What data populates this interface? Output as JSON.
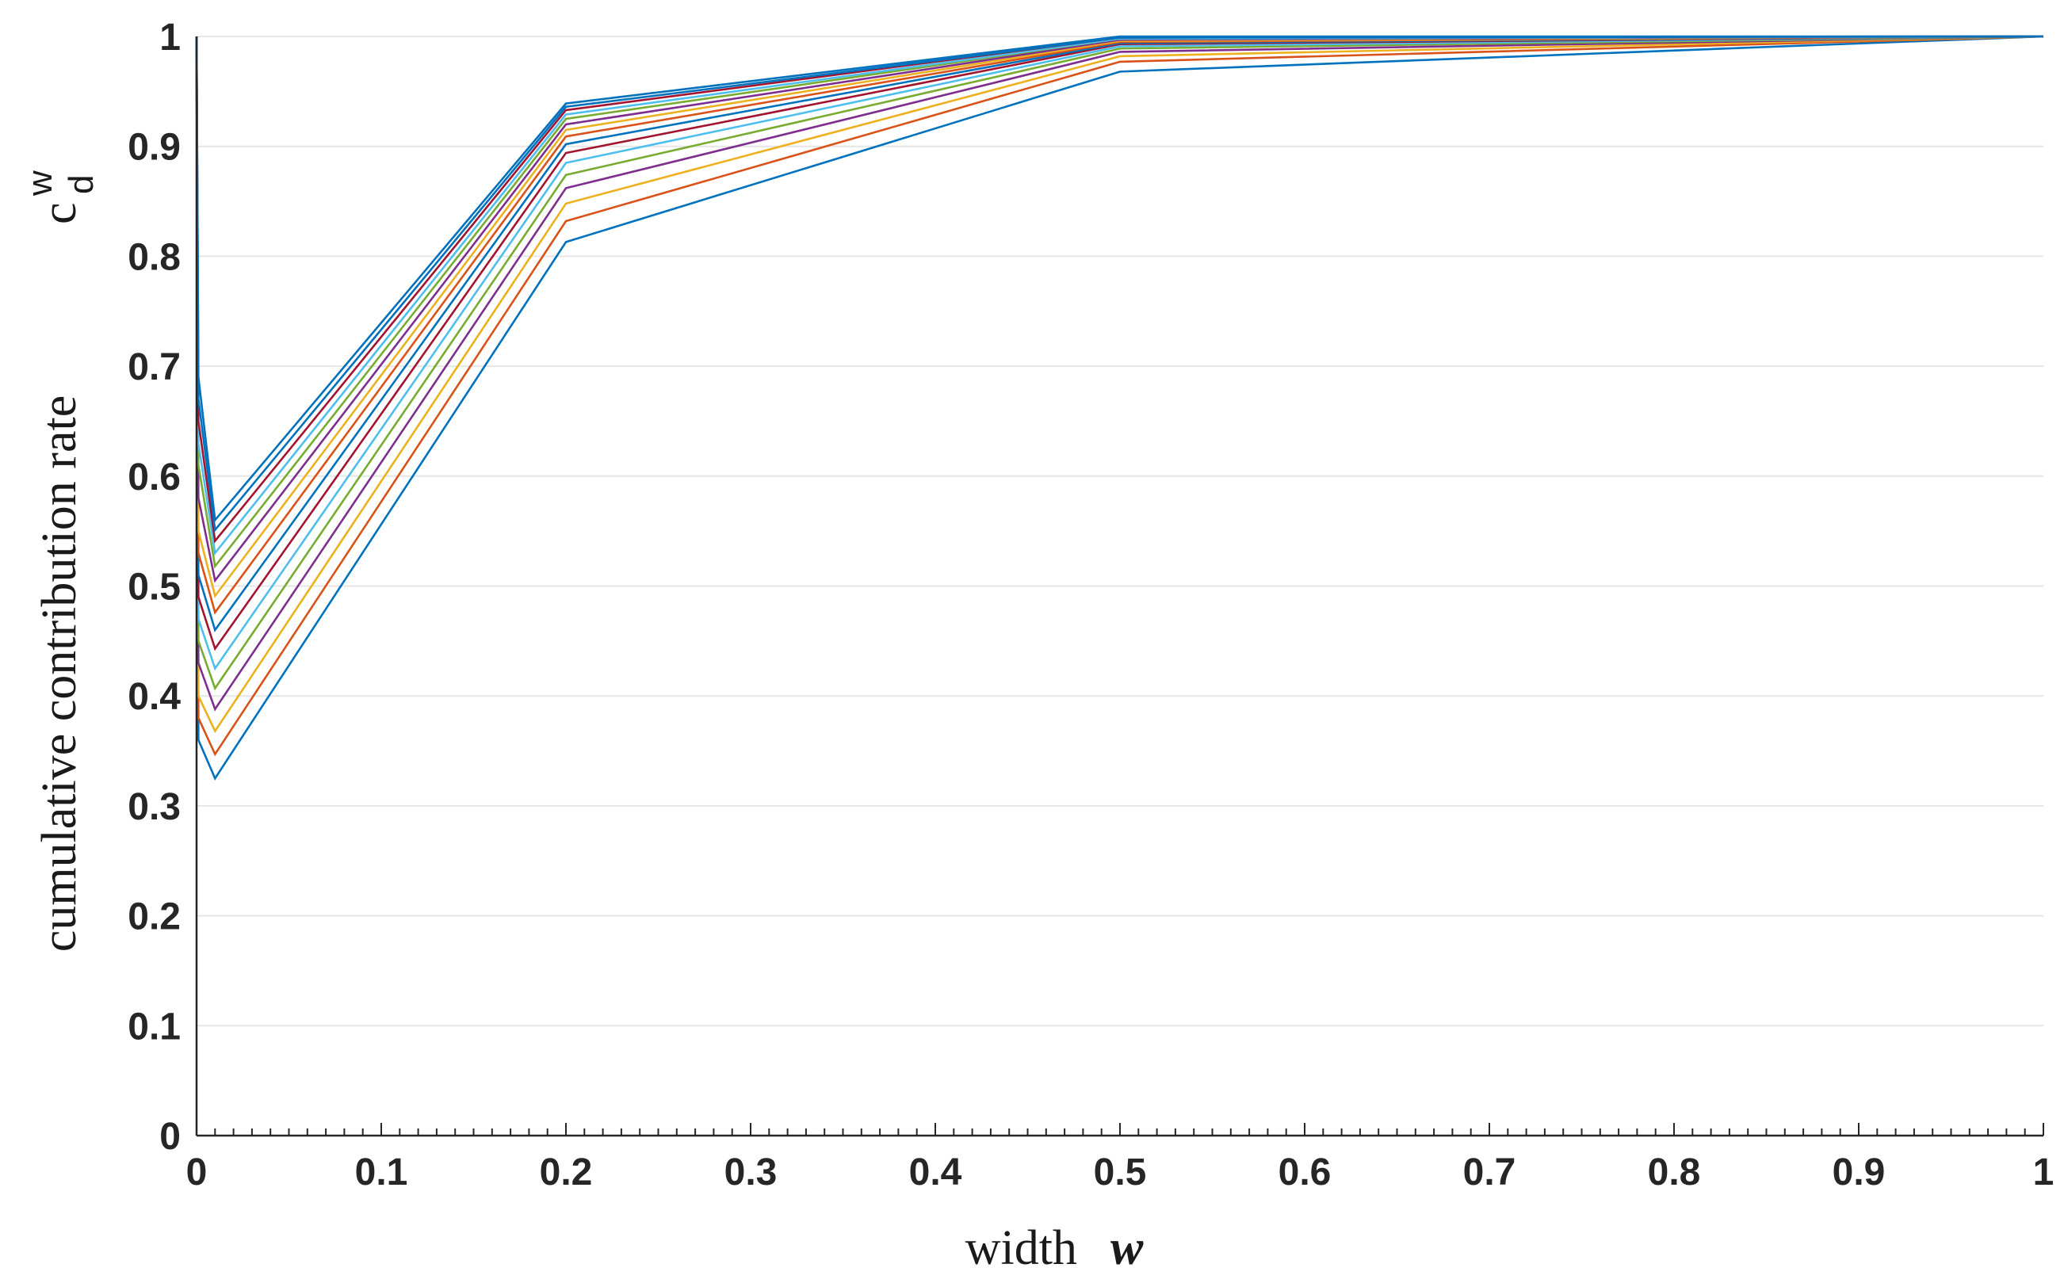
{
  "chart_data": {
    "type": "line",
    "xlabel": "width",
    "xlabel_var": "w",
    "ylabel": "cumulative contribution rate",
    "ylabel_symbol": "c",
    "ylabel_superscript": "w",
    "ylabel_subscript": "d",
    "xlim": [
      0,
      1
    ],
    "ylim": [
      0,
      1
    ],
    "xticks": [
      "0",
      "0.1",
      "0.2",
      "0.3",
      "0.4",
      "0.5",
      "0.6",
      "0.7",
      "0.8",
      "0.9",
      "1"
    ],
    "yticks": [
      "0",
      "0.1",
      "0.2",
      "0.3",
      "0.4",
      "0.5",
      "0.6",
      "0.7",
      "0.8",
      "0.9",
      "1"
    ],
    "grid": "horizontal",
    "x": [
      0,
      0.001,
      0.01,
      0.2,
      0.5,
      1
    ],
    "series": [
      {
        "color": "#0072BD",
        "values": [
          1,
          0.36,
          0.325,
          0.813,
          0.968,
          1
        ]
      },
      {
        "color": "#D95319",
        "values": [
          1,
          0.38,
          0.347,
          0.832,
          0.977,
          1
        ]
      },
      {
        "color": "#EDB120",
        "values": [
          1,
          0.4,
          0.368,
          0.848,
          0.982,
          1
        ]
      },
      {
        "color": "#7E2F8E",
        "values": [
          1,
          0.43,
          0.388,
          0.862,
          0.986,
          1
        ]
      },
      {
        "color": "#77AC30",
        "values": [
          1,
          0.45,
          0.407,
          0.874,
          0.989,
          1
        ]
      },
      {
        "color": "#4DBEEE",
        "values": [
          1,
          0.47,
          0.425,
          0.885,
          0.991,
          1
        ]
      },
      {
        "color": "#A2142F",
        "values": [
          1,
          0.49,
          0.443,
          0.894,
          0.993,
          1
        ]
      },
      {
        "color": "#0072BD",
        "values": [
          1,
          0.51,
          0.46,
          0.902,
          0.994,
          1
        ]
      },
      {
        "color": "#D95319",
        "values": [
          1,
          0.53,
          0.476,
          0.909,
          0.995,
          1
        ]
      },
      {
        "color": "#EDB120",
        "values": [
          1,
          0.55,
          0.491,
          0.915,
          0.996,
          1
        ]
      },
      {
        "color": "#7E2F8E",
        "values": [
          1,
          0.58,
          0.505,
          0.92,
          0.997,
          1
        ]
      },
      {
        "color": "#77AC30",
        "values": [
          1,
          0.61,
          0.518,
          0.925,
          0.998,
          1
        ]
      },
      {
        "color": "#4DBEEE",
        "values": [
          1,
          0.63,
          0.53,
          0.929,
          0.998,
          1
        ]
      },
      {
        "color": "#A2142F",
        "values": [
          1,
          0.65,
          0.541,
          0.933,
          0.999,
          1
        ]
      },
      {
        "color": "#0072BD",
        "values": [
          1,
          0.67,
          0.551,
          0.936,
          0.999,
          1
        ]
      },
      {
        "color": "#0072BD",
        "values": [
          1,
          0.69,
          0.56,
          0.939,
          1.0,
          1
        ]
      }
    ]
  }
}
